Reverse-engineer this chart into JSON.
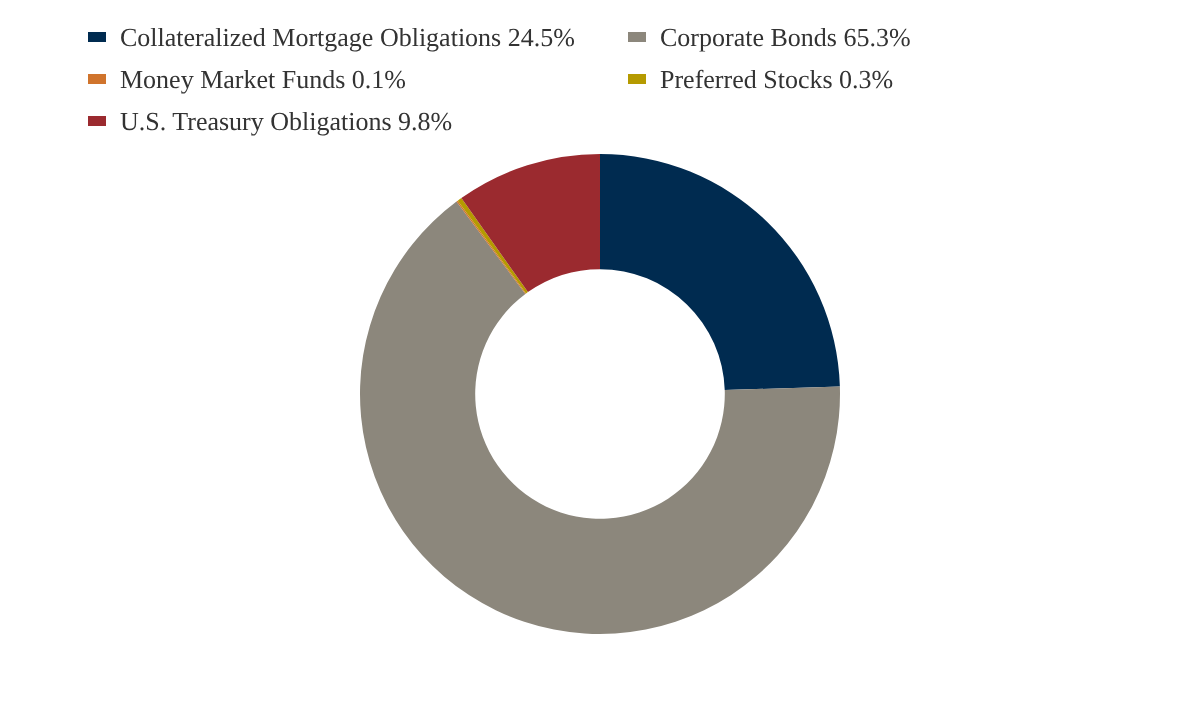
{
  "chart_data": {
    "type": "donut",
    "categories": [
      "Collateralized Mortgage Obligations",
      "Corporate Bonds",
      "Money Market Funds",
      "Preferred Stocks",
      "U.S. Treasury Obligations"
    ],
    "values": [
      24.5,
      65.3,
      0.1,
      0.3,
      9.8
    ],
    "value_labels": [
      "24.5%",
      "65.3%",
      "0.1%",
      "0.3%",
      "9.8%"
    ],
    "colors": [
      "#002b50",
      "#8c877c",
      "#d0742c",
      "#b59a00",
      "#9b2a2f"
    ],
    "legend": "top"
  }
}
